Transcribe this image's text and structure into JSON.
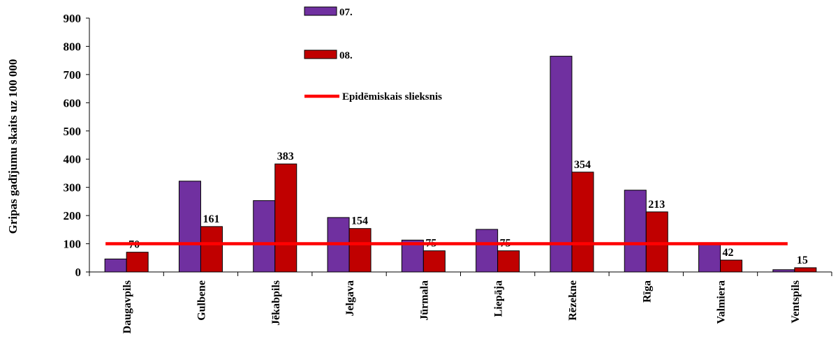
{
  "chart_data": {
    "type": "bar",
    "categories": [
      "Daugavpils",
      "Gulbene",
      "Jēkabpils",
      "Jelgava",
      "Jūrmala",
      "Liepāja",
      "Rēzekne",
      "Rīga",
      "Valmiera",
      "Ventspils"
    ],
    "series": [
      {
        "name": "07.",
        "color": "#7030a0",
        "values": [
          46,
          322,
          253,
          193,
          113,
          151,
          765,
          290,
          104,
          8
        ]
      },
      {
        "name": "08.",
        "color": "#c00000",
        "values": [
          70,
          161,
          383,
          154,
          75,
          75,
          354,
          213,
          42,
          15
        ],
        "data_labels": [
          "70",
          "161",
          "383",
          "154",
          "75",
          "75",
          "354",
          "213",
          "42",
          "15"
        ]
      }
    ],
    "threshold": {
      "name": "Epidēmiskais slieksnis",
      "value": 100,
      "color": "#ff0000"
    },
    "ylabel": "Gripas gadījumu skaits uz 100 000",
    "xlabel": "",
    "ylim": [
      0,
      900
    ],
    "yticks": [
      0,
      100,
      200,
      300,
      400,
      500,
      600,
      700,
      800,
      900
    ],
    "grid": false,
    "legend_position": "top-center"
  }
}
